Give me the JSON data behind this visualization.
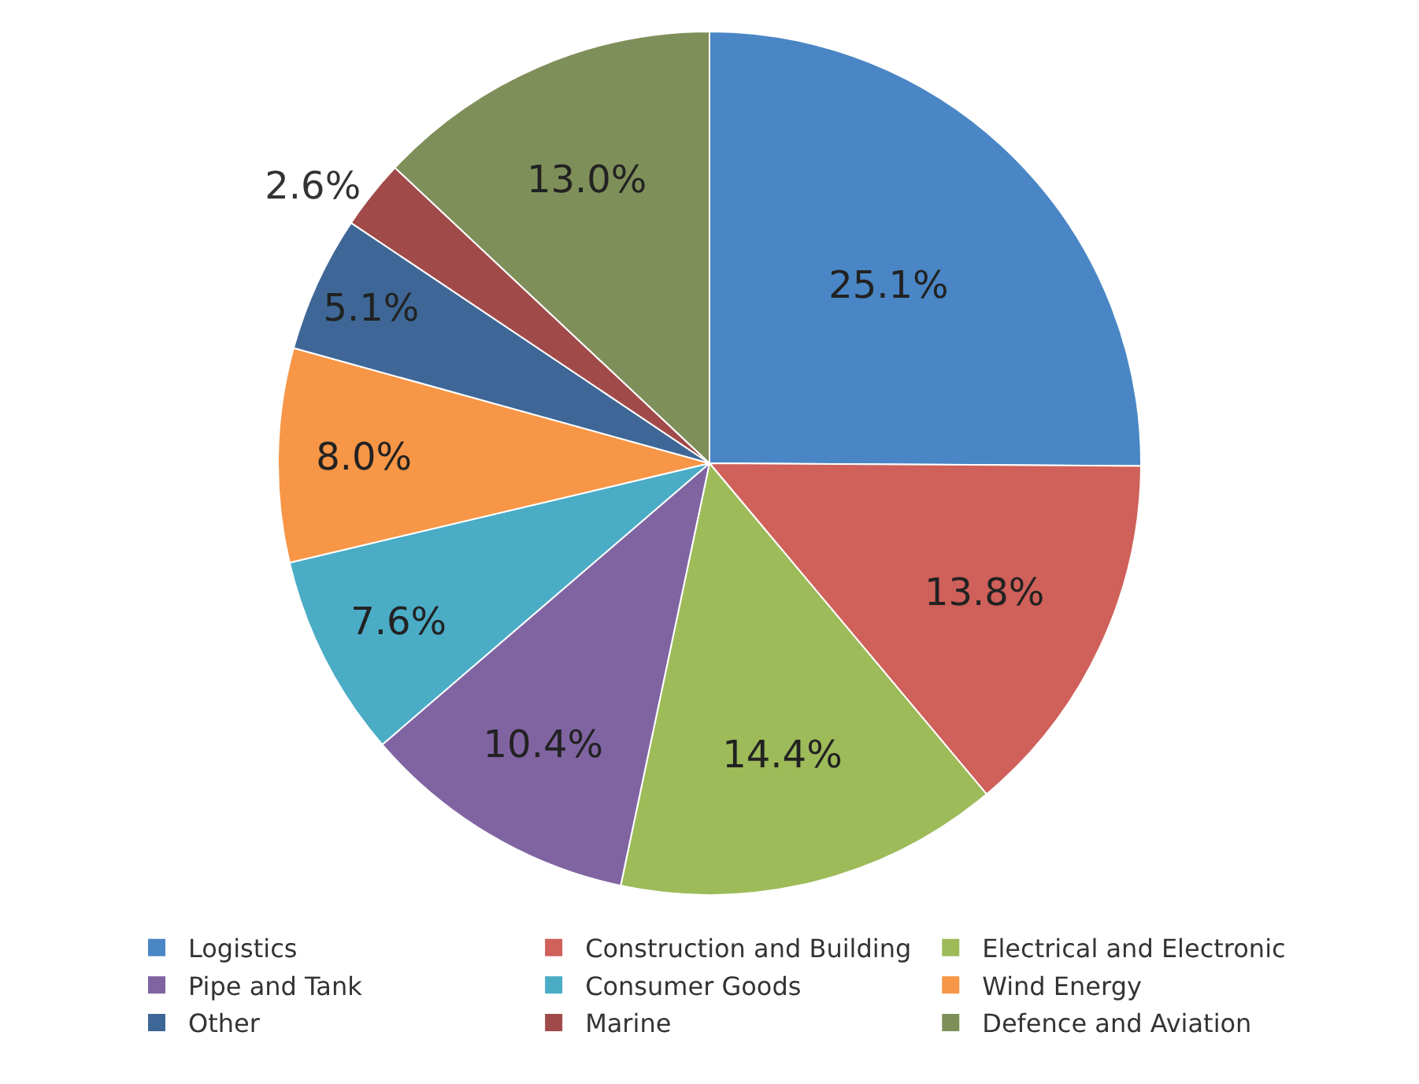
{
  "chart_data": {
    "type": "pie",
    "categories": [
      "Logistics",
      "Construction and Building",
      "Electrical and Electronic",
      "Pipe and Tank",
      "Consumer Goods",
      "Wind Energy",
      "Other",
      "Marine",
      "Defence and Aviation"
    ],
    "values": [
      25.1,
      13.8,
      14.4,
      10.4,
      7.6,
      8.0,
      5.1,
      2.6,
      13.0
    ],
    "value_labels": [
      "25.1%",
      "13.8%",
      "14.4%",
      "10.4%",
      "7.6%",
      "8.0%",
      "5.1%",
      "2.6%",
      "13.0%"
    ],
    "colors": [
      "#4a86c5",
      "#d0605a",
      "#9dbb59",
      "#8064a2",
      "#4bacc6",
      "#f79646",
      "#3e6797",
      "#a14a4a",
      "#7f8f5a"
    ],
    "legend": "bottom"
  }
}
